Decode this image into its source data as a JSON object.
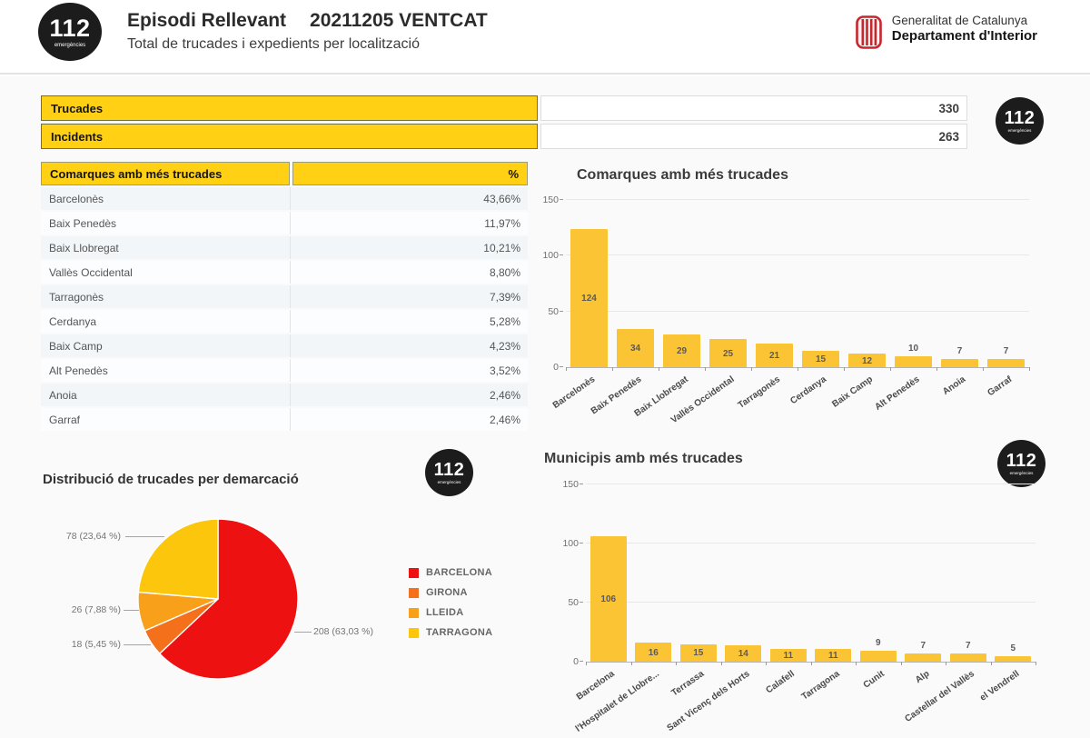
{
  "theme": {
    "accent_yellow": "#FFD013",
    "bar_yellow": "#FBC435"
  },
  "header": {
    "logo112": {
      "number": "112",
      "caption": "emergències"
    },
    "title_part1": "Episodi Rellevant",
    "title_part2": "20211205 VENTCAT",
    "subtitle": "Total de trucades i expedients per localització",
    "generalitat": {
      "line1": "Generalitat de Catalunya",
      "line2": "Departament d'Interior"
    }
  },
  "stats": {
    "rows": [
      {
        "label": "Trucades",
        "value": "330"
      },
      {
        "label": "Incidents",
        "value": "263"
      }
    ]
  },
  "comarques_table": {
    "header": {
      "label": "Comarques amb més trucades",
      "pct": "%"
    },
    "rows": [
      {
        "name": "Barcelonès",
        "pct": "43,66%"
      },
      {
        "name": "Baix Penedès",
        "pct": "11,97%"
      },
      {
        "name": "Baix Llobregat",
        "pct": "10,21%"
      },
      {
        "name": "Vallès Occidental",
        "pct": "8,80%"
      },
      {
        "name": "Tarragonès",
        "pct": "7,39%"
      },
      {
        "name": "Cerdanya",
        "pct": "5,28%"
      },
      {
        "name": "Baix Camp",
        "pct": "4,23%"
      },
      {
        "name": "Alt Penedès",
        "pct": "3,52%"
      },
      {
        "name": "Anoia",
        "pct": "2,46%"
      },
      {
        "name": "Garraf",
        "pct": "2,46%"
      }
    ]
  },
  "chart_data": [
    {
      "type": "bar",
      "title": "Comarques amb més trucades",
      "categories": [
        "Barcelonès",
        "Baix Penedès",
        "Baix Llobregat",
        "Vallès Occidental",
        "Tarragonès",
        "Cerdanya",
        "Baix Camp",
        "Alt Penedès",
        "Anoia",
        "Garraf"
      ],
      "values": [
        124,
        34,
        29,
        25,
        21,
        15,
        12,
        10,
        7,
        7
      ],
      "xlabel": "",
      "ylabel": "",
      "ylim": [
        0,
        150
      ],
      "yticks": [
        0,
        50,
        100,
        150
      ],
      "grid": true,
      "legend": "none",
      "bar_color": "#FBC435"
    },
    {
      "type": "pie",
      "title": "Distribució de trucades per demarcació",
      "slices": [
        {
          "name": "BARCELONA",
          "value": 208,
          "label": "208 (63,03 %)",
          "color": "#EE1111"
        },
        {
          "name": "GIRONA",
          "value": 18,
          "label": "18 (5,45 %)",
          "color": "#F4701A"
        },
        {
          "name": "LLEIDA",
          "value": 26,
          "label": "26 (7,88 %)",
          "color": "#F9A01B"
        },
        {
          "name": "TARRAGONA",
          "value": 78,
          "label": "78 (23,64 %)",
          "color": "#FCC60D"
        }
      ],
      "legend": "right",
      "legend_order": [
        "BARCELONA",
        "GIRONA",
        "LLEIDA",
        "TARRAGONA"
      ]
    },
    {
      "type": "bar",
      "title": "Municipis amb més trucades",
      "categories": [
        "Barcelona",
        "l'Hospitalet de Llobre...",
        "Terrassa",
        "Sant Vicenç dels Horts",
        "Calafell",
        "Tarragona",
        "Cunit",
        "Alp",
        "Castellar del Vallès",
        "el Vendrell"
      ],
      "values": [
        106,
        16,
        15,
        14,
        11,
        11,
        9,
        7,
        7,
        5
      ],
      "xlabel": "",
      "ylabel": "",
      "ylim": [
        0,
        150
      ],
      "yticks": [
        0,
        50,
        100,
        150
      ],
      "grid": true,
      "legend": "none",
      "bar_color": "#FBC435"
    }
  ]
}
